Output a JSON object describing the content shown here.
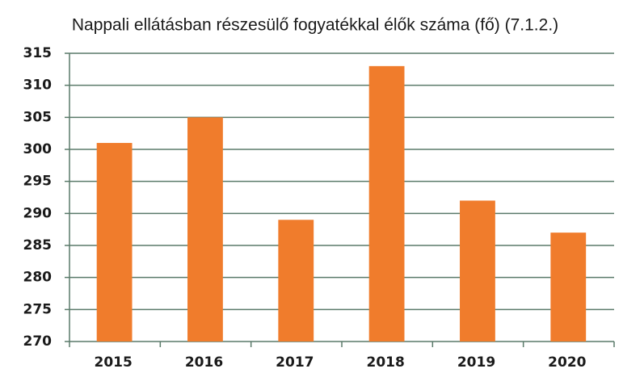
{
  "chart_data": {
    "type": "bar",
    "title": "Nappali ellátásban részesülő fogyatékkal élők száma (fő) (7.1.2.)",
    "categories": [
      "2015",
      "2016",
      "2017",
      "2018",
      "2019",
      "2020"
    ],
    "values": [
      301,
      305,
      289,
      313,
      292,
      287
    ],
    "color": "#f07c2c",
    "ylim": [
      270,
      315
    ],
    "yticks": [
      270,
      275,
      280,
      285,
      290,
      295,
      300,
      305,
      310,
      315
    ],
    "grid": true
  }
}
